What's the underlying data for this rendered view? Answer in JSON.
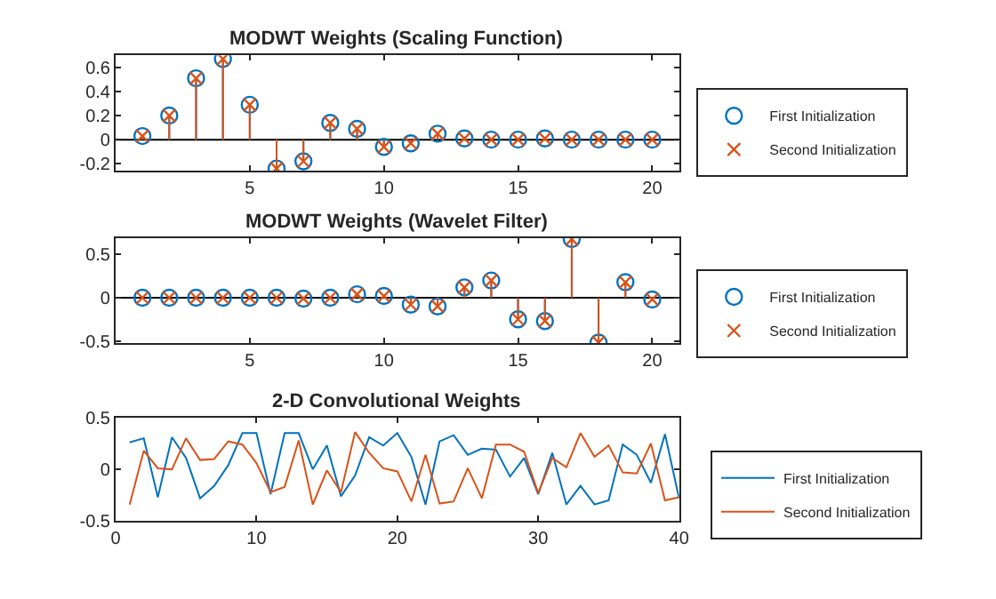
{
  "chart_data": [
    {
      "type": "lollipop",
      "title": "MODWT Weights (Scaling Function)",
      "x": [
        1,
        2,
        3,
        4,
        5,
        6,
        7,
        8,
        9,
        10,
        11,
        12,
        13,
        14,
        15,
        16,
        17,
        18,
        19,
        20
      ],
      "xlim": [
        0,
        21
      ],
      "xticks": [
        5,
        10,
        15,
        20
      ],
      "ylim": [
        -0.26,
        0.7
      ],
      "yticks": [
        -0.2,
        0,
        0.2,
        0.4,
        0.6
      ],
      "grid": false,
      "legend": "right",
      "ref_lines": [
        {
          "axis": "y",
          "value": 0,
          "color": "#000000"
        }
      ],
      "series": [
        {
          "name": "First Initialization",
          "color": "#0072bd",
          "marker": "circle",
          "values": [
            0.03,
            0.2,
            0.51,
            0.67,
            0.29,
            -0.24,
            -0.18,
            0.14,
            0.09,
            -0.06,
            -0.03,
            0.05,
            0.01,
            0,
            0,
            0.01,
            0,
            0,
            0,
            0
          ]
        },
        {
          "name": "Second Initialization",
          "color": "#d95319",
          "marker": "cross",
          "values": [
            0.03,
            0.2,
            0.51,
            0.67,
            0.29,
            -0.24,
            -0.18,
            0.14,
            0.09,
            -0.06,
            -0.03,
            0.05,
            0.01,
            0,
            0,
            0.01,
            0,
            0,
            0,
            0
          ]
        }
      ]
    },
    {
      "type": "lollipop",
      "title": "MODWT Weights (Wavelet Filter)",
      "x": [
        1,
        2,
        3,
        4,
        5,
        6,
        7,
        8,
        9,
        10,
        11,
        12,
        13,
        14,
        15,
        16,
        17,
        18,
        19,
        20
      ],
      "xlim": [
        0,
        21
      ],
      "xticks": [
        5,
        10,
        15,
        20
      ],
      "ylim": [
        -0.53,
        0.69
      ],
      "yticks": [
        -0.5,
        0,
        0.5
      ],
      "grid": false,
      "legend": "right",
      "ref_lines": [
        {
          "axis": "y",
          "value": 0,
          "color": "#000000"
        }
      ],
      "series": [
        {
          "name": "First Initialization",
          "color": "#0072bd",
          "marker": "circle",
          "values": [
            0,
            0,
            0,
            0,
            0,
            0,
            -0.01,
            0,
            0.04,
            0.02,
            -0.08,
            -0.1,
            0.12,
            0.2,
            -0.25,
            -0.27,
            0.68,
            -0.52,
            0.18,
            -0.02
          ]
        },
        {
          "name": "Second Initialization",
          "color": "#d95319",
          "marker": "cross",
          "values": [
            0,
            0,
            0,
            0,
            0,
            0,
            -0.01,
            0,
            0.04,
            0.02,
            -0.08,
            -0.1,
            0.12,
            0.2,
            -0.25,
            -0.27,
            0.68,
            -0.52,
            0.18,
            -0.02
          ]
        }
      ]
    },
    {
      "type": "line",
      "title": "2-D Convolutional Weights",
      "x": [
        1,
        2,
        3,
        4,
        5,
        6,
        7,
        8,
        9,
        10,
        11,
        12,
        13,
        14,
        15,
        16,
        17,
        18,
        19,
        20,
        21,
        22,
        23,
        24,
        25,
        26,
        27,
        28,
        29,
        30,
        31,
        32,
        33,
        34,
        35,
        36,
        37,
        38,
        39,
        40
      ],
      "xlim": [
        0,
        40
      ],
      "xticks": [
        0,
        10,
        20,
        30,
        40
      ],
      "ylim": [
        -0.5,
        0.5
      ],
      "yticks": [
        -0.5,
        0,
        0.5
      ],
      "grid": false,
      "legend": "right",
      "series": [
        {
          "name": "First Initialization",
          "color": "#0072bd",
          "values": [
            0.26,
            0.3,
            -0.27,
            0.31,
            0.11,
            -0.28,
            -0.16,
            0.04,
            0.35,
            0.35,
            -0.24,
            0.35,
            0.35,
            0,
            0.23,
            -0.26,
            -0.06,
            0.31,
            0.23,
            0.35,
            0.12,
            -0.34,
            0.27,
            0.33,
            0.14,
            0.2,
            0.19,
            -0.07,
            0.11,
            -0.24,
            0.16,
            -0.34,
            -0.16,
            -0.34,
            -0.3,
            0.24,
            0.14,
            -0.13,
            0.34,
            -0.28
          ]
        },
        {
          "name": "Second Initialization",
          "color": "#d95319",
          "values": [
            -0.34,
            0.18,
            0.01,
            0,
            0.3,
            0.09,
            0.1,
            0.27,
            0.24,
            0.06,
            -0.22,
            -0.17,
            0.28,
            -0.34,
            -0.01,
            -0.22,
            0.36,
            0.16,
            0.01,
            -0.02,
            -0.31,
            0.14,
            -0.33,
            -0.31,
            0.01,
            -0.28,
            0.24,
            0.24,
            0.17,
            -0.23,
            0.11,
            0.02,
            0.35,
            0.12,
            0.23,
            -0.03,
            -0.04,
            0.25,
            -0.3,
            -0.27
          ]
        }
      ]
    }
  ]
}
